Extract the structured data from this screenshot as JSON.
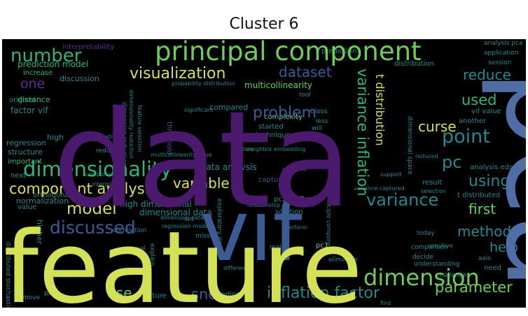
{
  "figure": {
    "title": "Cluster 6"
  },
  "palette": {
    "purple": "#4b1a6e",
    "violet": "#5a2d8c",
    "blue": "#3b5b93",
    "slate": "#4f6ea6",
    "teal": "#23898e",
    "green": "#2fb47c",
    "mint": "#6dcd59",
    "yellow": "#d4e157",
    "lime": "#b5de2b"
  },
  "wordcloud": {
    "words": [
      {
        "text": "data",
        "color": "purple"
      },
      {
        "text": "pca",
        "color": "slate"
      },
      {
        "text": "feature",
        "color": "yellow"
      },
      {
        "text": "vif",
        "color": "blue"
      },
      {
        "text": "principal component",
        "color": "mint"
      },
      {
        "text": "dimensionality",
        "color": "green"
      },
      {
        "text": "component analysis",
        "color": "yellow"
      },
      {
        "text": "variance inflation",
        "color": "green"
      },
      {
        "text": "dimension",
        "color": "mint"
      },
      {
        "text": "inflation factor",
        "color": "teal"
      },
      {
        "text": "discussed",
        "color": "blue"
      },
      {
        "text": "variance",
        "color": "teal"
      },
      {
        "text": "visualization",
        "color": "yellow"
      },
      {
        "text": "number",
        "color": "green"
      },
      {
        "text": "model",
        "color": "yellow"
      },
      {
        "text": "point",
        "color": "teal"
      },
      {
        "text": "problem",
        "color": "blue"
      },
      {
        "text": "dataset",
        "color": "blue"
      },
      {
        "text": "reduce",
        "color": "teal"
      },
      {
        "text": "used",
        "color": "green"
      },
      {
        "text": "pc",
        "color": "teal"
      },
      {
        "text": "curse",
        "color": "yellow"
      },
      {
        "text": "using",
        "color": "teal"
      },
      {
        "text": "first",
        "color": "mint"
      },
      {
        "text": "method",
        "color": "teal"
      },
      {
        "text": "help",
        "color": "teal"
      },
      {
        "text": "parameter",
        "color": "mint"
      },
      {
        "text": "variable",
        "color": "yellow"
      },
      {
        "text": "sne",
        "color": "blue"
      },
      {
        "text": "use",
        "color": "mint"
      },
      {
        "text": "one",
        "color": "violet"
      },
      {
        "text": "t distribution",
        "color": "yellow"
      },
      {
        "text": "data analysis",
        "color": "teal"
      },
      {
        "text": "multicollinearity",
        "color": "mint"
      },
      {
        "text": "high dimensional",
        "color": "teal"
      },
      {
        "text": "dimensional data",
        "color": "teal"
      },
      {
        "text": "prediction model",
        "color": "green"
      },
      {
        "text": "factor vif",
        "color": "teal"
      },
      {
        "text": "distance",
        "color": "green"
      },
      {
        "text": "regression",
        "color": "teal"
      },
      {
        "text": "structure",
        "color": "teal"
      },
      {
        "text": "discussion",
        "color": "teal"
      },
      {
        "text": "increase",
        "color": "green"
      },
      {
        "text": "interpretability",
        "color": "violet"
      },
      {
        "text": "probability distribution",
        "color": "teal"
      },
      {
        "text": "analysis pca",
        "color": "teal"
      },
      {
        "text": "application",
        "color": "teal"
      },
      {
        "text": "session",
        "color": "teal"
      },
      {
        "text": "prediction",
        "color": "teal"
      },
      {
        "text": "distribution",
        "color": "teal"
      },
      {
        "text": "compared",
        "color": "teal"
      },
      {
        "text": "technique",
        "color": "teal"
      },
      {
        "text": "started",
        "color": "teal"
      },
      {
        "text": "complexity",
        "color": "mint"
      },
      {
        "text": "vif value",
        "color": "teal"
      },
      {
        "text": "another",
        "color": "teal"
      },
      {
        "text": "making",
        "color": "teal"
      },
      {
        "text": "normalization",
        "color": "teal"
      },
      {
        "text": "orthogonal",
        "color": "teal"
      },
      {
        "text": "higher",
        "color": "teal"
      },
      {
        "text": "next",
        "color": "teal"
      },
      {
        "text": "capture",
        "color": "blue"
      },
      {
        "text": "pc2",
        "color": "teal"
      },
      {
        "text": "pc1",
        "color": "mint"
      },
      {
        "text": "result",
        "color": "teal"
      },
      {
        "text": "t distributed",
        "color": "teal"
      },
      {
        "text": "analysis eda",
        "color": "teal"
      },
      {
        "text": "exploratory data",
        "color": "teal"
      },
      {
        "text": "solution",
        "color": "teal"
      },
      {
        "text": "need",
        "color": "teal"
      },
      {
        "text": "many",
        "color": "teal"
      },
      {
        "text": "plot",
        "color": "teal"
      },
      {
        "text": "lecture",
        "color": "teal"
      },
      {
        "text": "loading",
        "color": "teal"
      },
      {
        "text": "explain",
        "color": "teal"
      },
      {
        "text": "equal",
        "color": "teal"
      },
      {
        "text": "set",
        "color": "teal"
      },
      {
        "text": "high",
        "color": "teal"
      },
      {
        "text": "original",
        "color": "teal"
      },
      {
        "text": "important",
        "color": "green"
      },
      {
        "text": "dimensionality reduction",
        "color": "teal"
      },
      {
        "text": "dimension reduction",
        "color": "teal"
      },
      {
        "text": "feature selection",
        "color": "teal"
      },
      {
        "text": "threshold",
        "color": "blue"
      },
      {
        "text": "class",
        "color": "teal"
      },
      {
        "text": "will",
        "color": "teal"
      },
      {
        "text": "less",
        "color": "teal"
      },
      {
        "text": "reducing",
        "color": "teal"
      },
      {
        "text": "correlation",
        "color": "teal"
      },
      {
        "text": "value",
        "color": "teal"
      },
      {
        "text": "understanding",
        "color": "teal"
      },
      {
        "text": "challenge",
        "color": "teal"
      },
      {
        "text": "comparison",
        "color": "teal"
      },
      {
        "text": "decide",
        "color": "teal"
      },
      {
        "text": "remove",
        "color": "teal"
      },
      {
        "text": "axis",
        "color": "teal"
      },
      {
        "text": "real",
        "color": "teal"
      },
      {
        "text": "today",
        "color": "teal"
      },
      {
        "text": "eliminate",
        "color": "teal"
      },
      {
        "text": "missed",
        "color": "teal"
      },
      {
        "text": "tool",
        "color": "teal"
      },
      {
        "text": "significant",
        "color": "teal"
      },
      {
        "text": "distributed stochastic",
        "color": "teal"
      },
      {
        "text": "regression model",
        "color": "teal"
      },
      {
        "text": "support",
        "color": "teal"
      },
      {
        "text": "reduced",
        "color": "teal"
      },
      {
        "text": "selection",
        "color": "teal"
      },
      {
        "text": "find",
        "color": "teal"
      },
      {
        "text": "pattern",
        "color": "teal"
      },
      {
        "text": "stochastic",
        "color": "teal"
      },
      {
        "text": "neighbor embedding",
        "color": "teal"
      },
      {
        "text": "component",
        "color": "teal"
      },
      {
        "text": "interpret",
        "color": "teal"
      },
      {
        "text": "visualize",
        "color": "teal"
      },
      {
        "text": "perform",
        "color": "teal"
      },
      {
        "text": "relationship",
        "color": "teal"
      },
      {
        "text": "principle component",
        "color": "teal"
      },
      {
        "text": "dimensional space",
        "color": "teal"
      },
      {
        "text": "variance captured",
        "color": "teal"
      },
      {
        "text": "difference",
        "color": "teal"
      },
      {
        "text": "sensitive",
        "color": "teal"
      },
      {
        "text": "dimension dataset",
        "color": "teal"
      },
      {
        "text": "multicollinearity issue",
        "color": "teal"
      }
    ]
  }
}
